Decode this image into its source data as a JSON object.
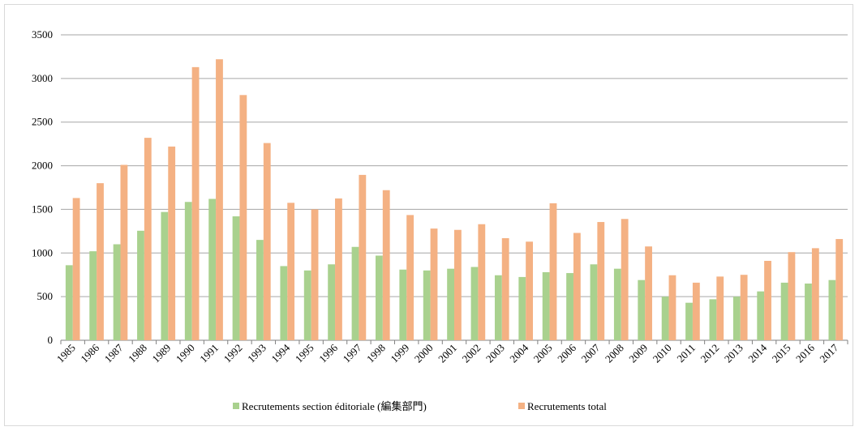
{
  "chart_data": {
    "type": "bar",
    "categories": [
      "1985",
      "1986",
      "1987",
      "1988",
      "1989",
      "1990",
      "1991",
      "1992",
      "1993",
      "1994",
      "1995",
      "1996",
      "1997",
      "1998",
      "1999",
      "2000",
      "2001",
      "2002",
      "2003",
      "2004",
      "2005",
      "2006",
      "2007",
      "2008",
      "2009",
      "2010",
      "2011",
      "2012",
      "2013",
      "2014",
      "2015",
      "2016",
      "2017"
    ],
    "series": [
      {
        "name": "Recrutements section éditoriale (編集部門)",
        "color": "#a9d18e",
        "values": [
          860,
          1020,
          1100,
          1255,
          1470,
          1585,
          1620,
          1420,
          1150,
          850,
          800,
          870,
          1070,
          970,
          810,
          800,
          820,
          840,
          745,
          725,
          780,
          770,
          870,
          820,
          690,
          500,
          430,
          470,
          500,
          560,
          660,
          650,
          690
        ]
      },
      {
        "name": "Recrutements total",
        "color": "#f4b183",
        "values": [
          1630,
          1800,
          2010,
          2320,
          2220,
          3130,
          3220,
          2810,
          2260,
          1575,
          1500,
          1625,
          1895,
          1720,
          1435,
          1280,
          1265,
          1330,
          1170,
          1130,
          1570,
          1230,
          1355,
          1390,
          1075,
          745,
          660,
          730,
          750,
          910,
          1010,
          1055,
          1160
        ]
      }
    ],
    "ylim": [
      0,
      3500
    ],
    "yticks": [
      0,
      500,
      1000,
      1500,
      2000,
      2500,
      3000,
      3500
    ],
    "grid": true,
    "legend": "bottom"
  }
}
